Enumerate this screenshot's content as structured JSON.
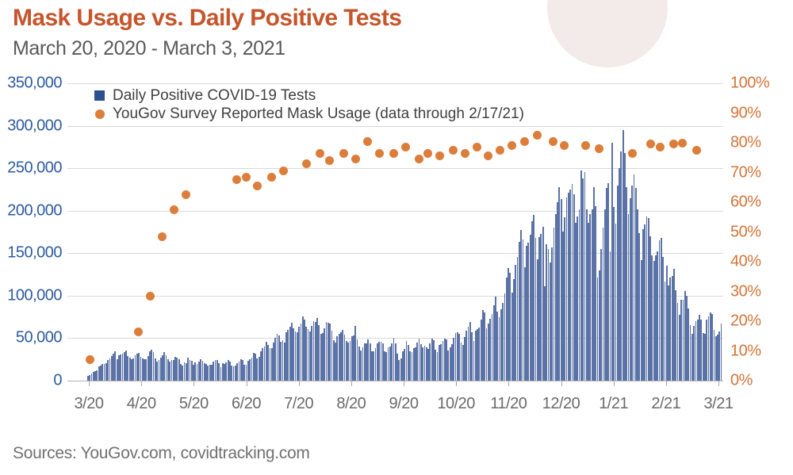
{
  "header": {
    "title": "Mask Usage vs. Daily Positive Tests",
    "subtitle": "March 20, 2020 - March 3, 2021"
  },
  "legend": {
    "items": [
      {
        "label": "Daily Positive COVID-19 Tests",
        "marker": "square",
        "color": "#2c4f8e"
      },
      {
        "label": "YouGov Survey Reported Mask Usage (data through 2/17/21)",
        "marker": "circle",
        "color": "#dd7d3a"
      }
    ]
  },
  "footer": {
    "sources": "Sources: YouGov.com, covidtracking.com"
  },
  "colors": {
    "title": "#c6552b",
    "bars": "#5a72a6",
    "dots": "#dd7d3a",
    "left_axis_text": "#2e5b9e",
    "right_axis_text": "#d2753a",
    "gridline": "#d9d9d9",
    "decorative_circle": "#f3eaea"
  },
  "chart_data": {
    "type": "bar",
    "subtype": "daily bars + weekly scatter overlay",
    "title": "Mask Usage vs. Daily Positive Tests",
    "date_range": "March 20, 2020 - March 3, 2021",
    "grid": "horizontal gridlines on",
    "legend_position": "top-left inside plot",
    "left_axis": {
      "min": 0,
      "max": 350000,
      "tick_labels": [
        "350,000",
        "300,000",
        "250,000",
        "200,000",
        "150,000",
        "100,000",
        "50,000",
        "0"
      ]
    },
    "right_axis": {
      "min": 0,
      "max": 100,
      "tick_labels": [
        "100%",
        "90%",
        "80%",
        "70%",
        "60%",
        "50%",
        "40%",
        "30%",
        "20%",
        "10%",
        "0%"
      ]
    },
    "x_axis": {
      "tick_labels": [
        "3/20",
        "4/20",
        "5/20",
        "6/20",
        "7/20",
        "8/20",
        "9/20",
        "10/20",
        "11/20",
        "12/20",
        "1/21",
        "2/21",
        "3/21"
      ]
    },
    "series": [
      {
        "name": "Daily Positive COVID-19 Tests",
        "type": "bar",
        "start_date": "2020-03-20",
        "end_date": "2021-03-03",
        "unit": "tests per day, values in thousands",
        "values_thousands": [
          5.7,
          6.2,
          8.3,
          10.2,
          10.9,
          12,
          17.2,
          18,
          19.5,
          19.4,
          20.9,
          24.2,
          25.9,
          28.8,
          32.1,
          34.2,
          25.5,
          29.6,
          30.6,
          31.7,
          33.5,
          35.1,
          29.1,
          27.1,
          25,
          26.4,
          29.9,
          31.4,
          32.9,
          28.1,
          26,
          25,
          25.3,
          28.7,
          34.2,
          36.2,
          33.7,
          26.5,
          22.5,
          24.3,
          27.3,
          29.5,
          33.9,
          29.7,
          24.9,
          22.3,
          23.8,
          24.3,
          27.9,
          26.9,
          25,
          19.6,
          18.1,
          21.5,
          20.9,
          26.9,
          24.1,
          23.2,
          18.9,
          21.8,
          19.9,
          22.6,
          25.4,
          23,
          20.6,
          19.8,
          17.3,
          18.7,
          18.3,
          22.3,
          24.3,
          23.8,
          20.7,
          15.8,
          20.5,
          19.9,
          21,
          24.7,
          22.2,
          17.9,
          17,
          17.9,
          20.8,
          22.8,
          25.6,
          24,
          18.6,
          18.9,
          23.2,
          25.5,
          27.2,
          32.2,
          31.7,
          26,
          27.6,
          34.7,
          38.2,
          40.5,
          45.3,
          42,
          38.6,
          38.7,
          45,
          50.6,
          55.2,
          53,
          45.3,
          47.8,
          44.8,
          56.7,
          59.6,
          63.2,
          68,
          61.7,
          58.3,
          56.9,
          63.9,
          67.6,
          75.7,
          71.6,
          63.2,
          60.4,
          57.8,
          64,
          70.1,
          68.9,
          73.4,
          65.5,
          55.3,
          56.3,
          61.5,
          68.7,
          68,
          67,
          58.4,
          47.7,
          45,
          52.2,
          55.2,
          57,
          59.7,
          54.2,
          47.1,
          45,
          46.8,
          52.4,
          52.8,
          64.1,
          48.5,
          40.5,
          35.1,
          39.1,
          44,
          44.3,
          48.7,
          44.2,
          34.5,
          34.4,
          38.7,
          43.6,
          45.6,
          46,
          43.9,
          34.3,
          33.6,
          39.4,
          39.7,
          44,
          50.5,
          43.9,
          31.9,
          24.2,
          26,
          34.7,
          37.1,
          47.1,
          41.6,
          34.4,
          33.5,
          38.6,
          38.8,
          44.4,
          49.4,
          42.6,
          38.9,
          41,
          39.2,
          37.6,
          44.3,
          49.5,
          47.5,
          36.6,
          33.9,
          42.2,
          42.6,
          46.5,
          49.2,
          48.2,
          35.2,
          39,
          42.5,
          50.5,
          56.2,
          57.3,
          54.7,
          44.6,
          41.7,
          51.5,
          59.2,
          63.6,
          68.8,
          57.2,
          47,
          58.4,
          60.3,
          62.8,
          71.7,
          82.9,
          79.9,
          61.8,
          66.8,
          73.2,
          78.4,
          88.5,
          99.3,
          81.2,
          74.2,
          84.4,
          91.5,
          102.8,
          121.2,
          132.8,
          126.5,
          103.7,
          119.9,
          136,
          145.5,
          163.4,
          177.2,
          166.5,
          133,
          158.9,
          162.3,
          172.1,
          187.8,
          195.5,
          167.6,
          142.9,
          169.2,
          172.9,
          181.2,
          110.6,
          160.2,
          154.9,
          138.9,
          157.1,
          180.1,
          195.7,
          210.2,
          227.9,
          213.9,
          175.7,
          192.3,
          215.9,
          221.3,
          224.8,
          231.8,
          219.2,
          185.7,
          193.2,
          201.9,
          247.4,
          238.3,
          245.7,
          201.7,
          185.9,
          196,
          201.7,
          228.1,
          205.6,
          120.9,
          130.1,
          155.3,
          180.5,
          202,
          226.9,
          232.2,
          152,
          280,
          204,
          185,
          230,
          250.5,
          270,
          295.1,
          268,
          228,
          196,
          215,
          229.8,
          243,
          227,
          202,
          174,
          142,
          178,
          184,
          193,
          191,
          170,
          147,
          141,
          147,
          152.5,
          165,
          168,
          146,
          117,
          135,
          112,
          121,
          123.5,
          132,
          106,
          91,
          77,
          95,
          95.5,
          105,
          100,
          85,
          65,
          55,
          64,
          70,
          71.5,
          77,
          72,
          56,
          55.5,
          72,
          76,
          80,
          78,
          60,
          52,
          54,
          57.5,
          67
        ]
      },
      {
        "name": "YouGov Survey Reported Mask Usage",
        "type": "scatter",
        "unit": "percent of respondents",
        "note": "data through 2/17/21",
        "points": [
          {
            "x_frac": 0.034,
            "pct": 7
          },
          {
            "x_frac": 0.108,
            "pct": 16.5
          },
          {
            "x_frac": 0.126,
            "pct": 28.5
          },
          {
            "x_frac": 0.144,
            "pct": 48.5
          },
          {
            "x_frac": 0.163,
            "pct": 57.5
          },
          {
            "x_frac": 0.181,
            "pct": 62.5
          },
          {
            "x_frac": 0.258,
            "pct": 67.5
          },
          {
            "x_frac": 0.273,
            "pct": 68.5
          },
          {
            "x_frac": 0.29,
            "pct": 65.5
          },
          {
            "x_frac": 0.311,
            "pct": 68.5
          },
          {
            "x_frac": 0.33,
            "pct": 70.5
          },
          {
            "x_frac": 0.365,
            "pct": 73
          },
          {
            "x_frac": 0.385,
            "pct": 76.5
          },
          {
            "x_frac": 0.4,
            "pct": 74
          },
          {
            "x_frac": 0.421,
            "pct": 76.5
          },
          {
            "x_frac": 0.439,
            "pct": 74.5
          },
          {
            "x_frac": 0.458,
            "pct": 80.5
          },
          {
            "x_frac": 0.476,
            "pct": 76.5
          },
          {
            "x_frac": 0.498,
            "pct": 76.5
          },
          {
            "x_frac": 0.516,
            "pct": 78.5
          },
          {
            "x_frac": 0.536,
            "pct": 74.5
          },
          {
            "x_frac": 0.549,
            "pct": 76.5
          },
          {
            "x_frac": 0.568,
            "pct": 75.5
          },
          {
            "x_frac": 0.588,
            "pct": 77.5
          },
          {
            "x_frac": 0.607,
            "pct": 76.5
          },
          {
            "x_frac": 0.625,
            "pct": 78.5
          },
          {
            "x_frac": 0.642,
            "pct": 75.5
          },
          {
            "x_frac": 0.66,
            "pct": 77.5
          },
          {
            "x_frac": 0.678,
            "pct": 79
          },
          {
            "x_frac": 0.697,
            "pct": 80.5
          },
          {
            "x_frac": 0.717,
            "pct": 82.5
          },
          {
            "x_frac": 0.741,
            "pct": 80.5
          },
          {
            "x_frac": 0.758,
            "pct": 79
          },
          {
            "x_frac": 0.79,
            "pct": 79
          },
          {
            "x_frac": 0.811,
            "pct": 78
          },
          {
            "x_frac": 0.862,
            "pct": 76.5
          },
          {
            "x_frac": 0.889,
            "pct": 79.5
          },
          {
            "x_frac": 0.904,
            "pct": 78.5
          },
          {
            "x_frac": 0.924,
            "pct": 79.5
          },
          {
            "x_frac": 0.938,
            "pct": 80
          },
          {
            "x_frac": 0.96,
            "pct": 77.5
          }
        ]
      }
    ]
  }
}
